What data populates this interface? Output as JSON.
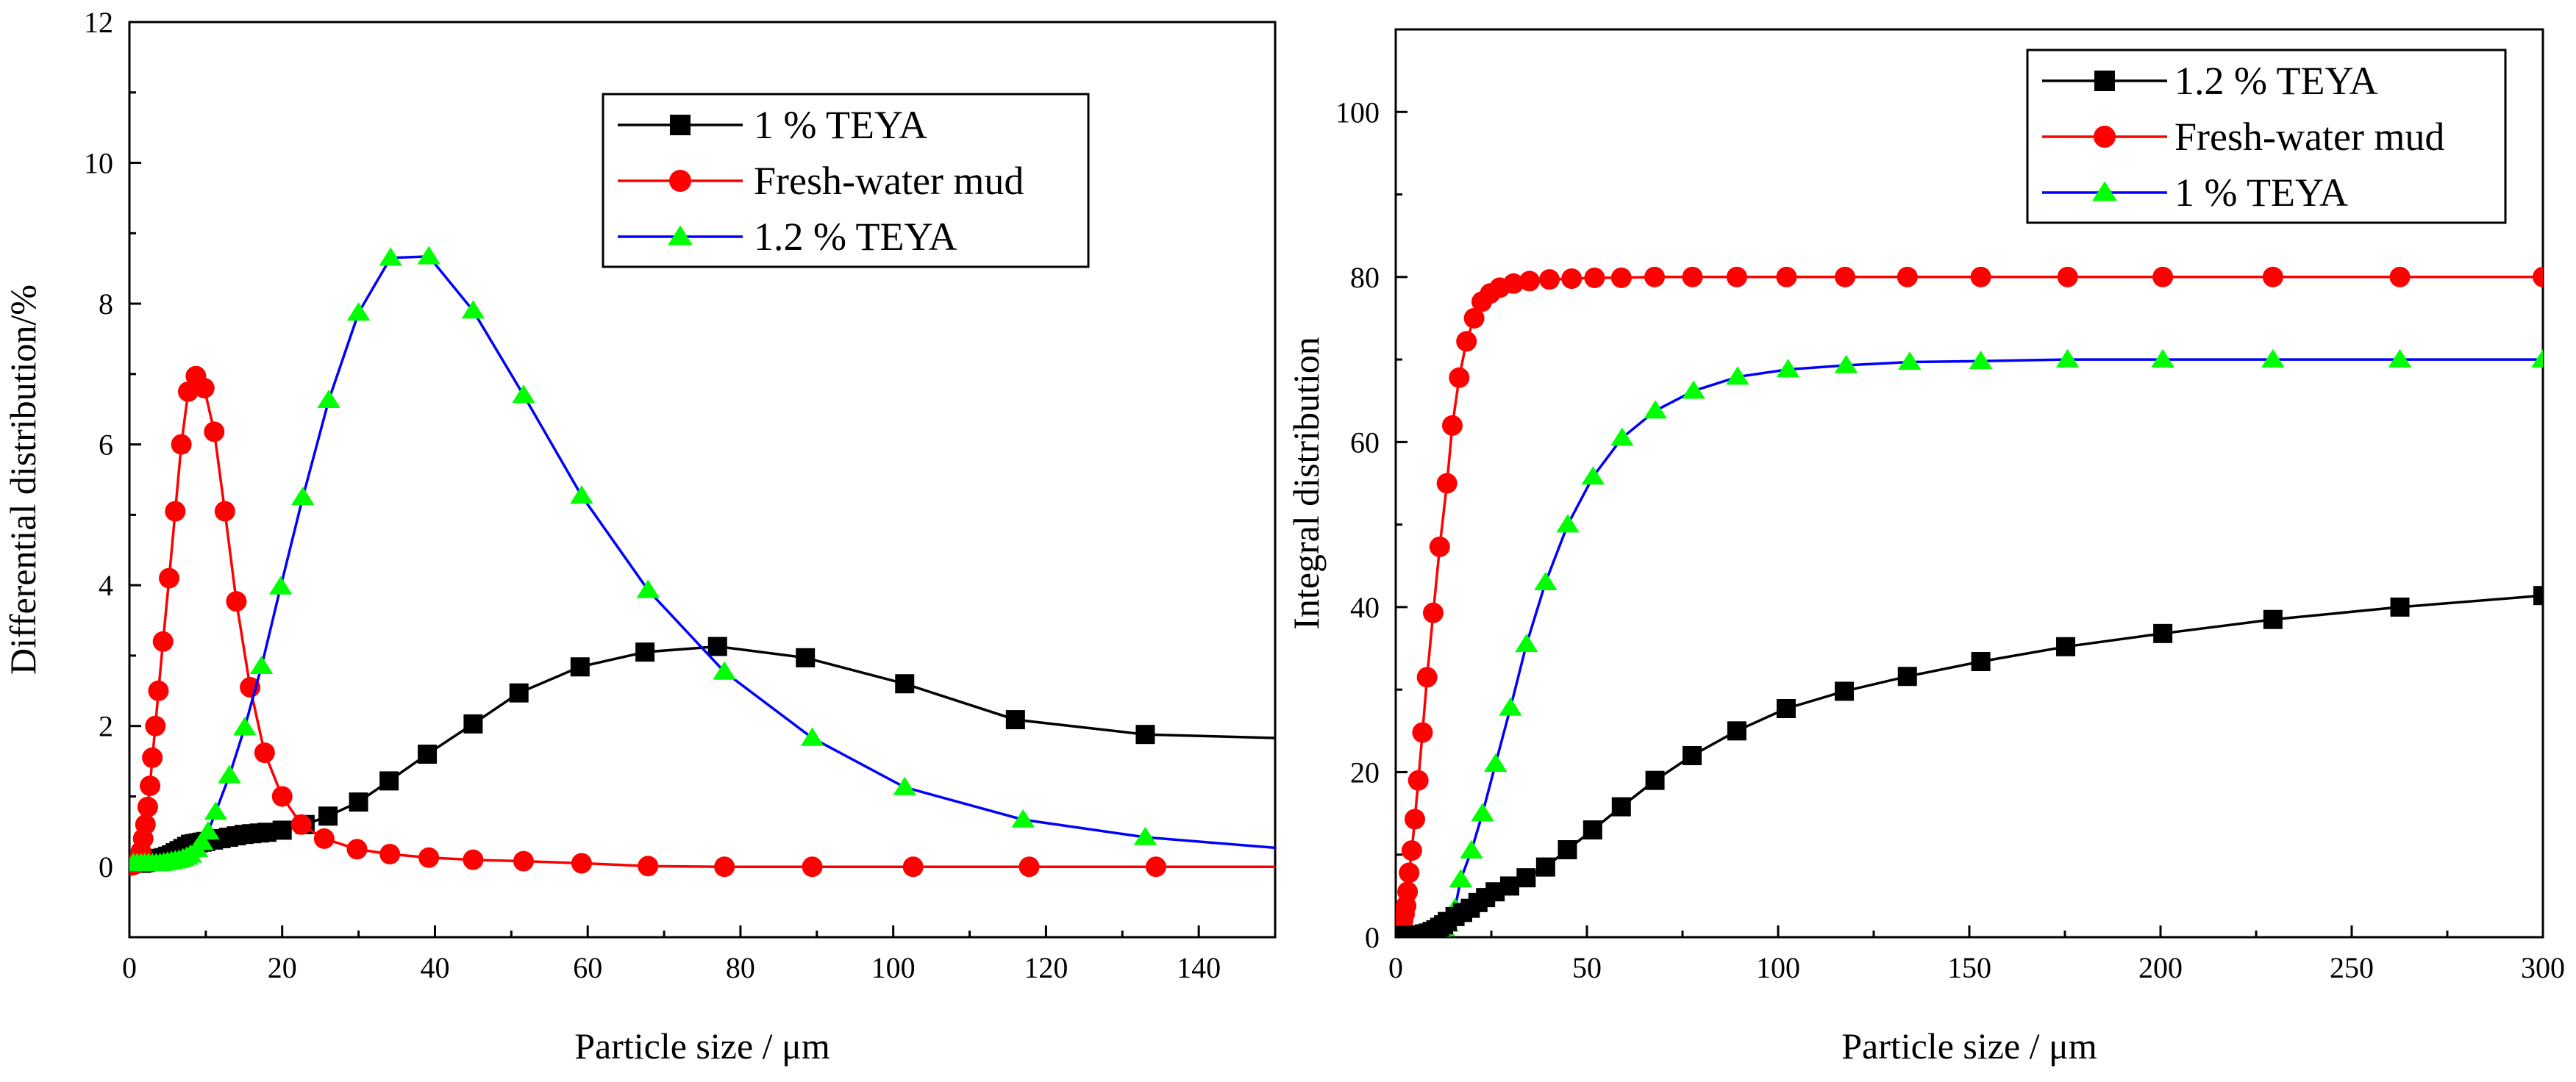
{
  "chart_data": [
    {
      "type": "line",
      "xlabel": "Particle size / μm",
      "ylabel": "Differential distribution/%",
      "xlim": [
        0,
        150
      ],
      "ylim": [
        -1,
        12
      ],
      "xticks": [
        0,
        20,
        40,
        60,
        80,
        100,
        120,
        140
      ],
      "yticks": [
        0,
        2,
        4,
        6,
        8,
        10,
        12
      ],
      "legend_position": "top-right",
      "legend_order": [
        0,
        1,
        2
      ],
      "series": [
        {
          "name": "1 % TEYA",
          "color": "#000000",
          "marker": "square",
          "x": [
            0.4,
            0.8,
            1.2,
            1.6,
            2.0,
            2.4,
            2.8,
            3.2,
            3.6,
            4.0,
            4.5,
            5.0,
            5.5,
            6.0,
            6.5,
            7.0,
            7.5,
            8.0,
            8.5,
            9.0,
            9.5,
            10.0,
            11.0,
            12.0,
            13.0,
            14.0,
            15.0,
            16.0,
            17.0,
            18.0,
            20.0,
            23.0,
            26.0,
            30.0,
            34.0,
            39.0,
            45.0,
            51.0,
            59.0,
            67.5,
            77.0,
            88.5,
            101.5,
            116.0,
            133.0,
            150.0
          ],
          "y": [
            0.05,
            0.05,
            0.05,
            0.05,
            0.06,
            0.07,
            0.08,
            0.09,
            0.1,
            0.12,
            0.13,
            0.15,
            0.17,
            0.2,
            0.23,
            0.26,
            0.29,
            0.32,
            0.33,
            0.34,
            0.35,
            0.36,
            0.38,
            0.4,
            0.42,
            0.44,
            0.46,
            0.47,
            0.48,
            0.49,
            0.52,
            0.6,
            0.72,
            0.92,
            1.22,
            1.6,
            2.03,
            2.47,
            2.84,
            3.05,
            3.13,
            2.97,
            2.6,
            2.09,
            1.88,
            1.83
          ],
          "markers_until": 133.0
        },
        {
          "name": "Fresh-water mud",
          "color": "#ff0000",
          "marker": "circle",
          "x": [
            0.3,
            0.6,
            0.9,
            1.2,
            1.5,
            1.8,
            2.1,
            2.4,
            2.7,
            3.0,
            3.4,
            3.8,
            4.4,
            5.2,
            6.0,
            6.8,
            7.7,
            8.7,
            9.8,
            11.1,
            12.5,
            14.0,
            15.8,
            17.7,
            20.0,
            22.5,
            25.5,
            29.8,
            34.1,
            39.2,
            45.0,
            51.6,
            59.2,
            67.9,
            77.9,
            89.4,
            102.6,
            117.8,
            134.4,
            150.0
          ],
          "y": [
            0.02,
            0.03,
            0.05,
            0.1,
            0.22,
            0.4,
            0.6,
            0.85,
            1.15,
            1.55,
            2.0,
            2.5,
            3.2,
            4.1,
            5.05,
            6.0,
            6.75,
            6.97,
            6.8,
            6.18,
            5.05,
            3.77,
            2.55,
            1.62,
            1.0,
            0.6,
            0.4,
            0.25,
            0.18,
            0.13,
            0.1,
            0.08,
            0.05,
            0.01,
            0.0,
            0.0,
            0.0,
            0.0,
            0.0,
            0.0
          ],
          "markers_until": 134.4
        },
        {
          "name": "1.2 % TEYA",
          "color": "#0000ff",
          "marker": "triangle",
          "marker_fill": "#00ff00",
          "x": [
            0.5,
            1.0,
            1.5,
            2.0,
            2.5,
            3.0,
            3.5,
            4.0,
            4.5,
            5.0,
            5.5,
            6.0,
            6.5,
            7.0,
            7.5,
            8.0,
            8.8,
            9.5,
            10.3,
            11.3,
            13.1,
            15.1,
            17.3,
            19.8,
            22.7,
            26.1,
            30.0,
            34.2,
            39.2,
            45.0,
            51.6,
            59.2,
            67.9,
            77.9,
            89.4,
            101.5,
            117.0,
            133.0,
            150.0
          ],
          "y": [
            0.05,
            0.05,
            0.05,
            0.05,
            0.05,
            0.05,
            0.05,
            0.05,
            0.06,
            0.07,
            0.08,
            0.09,
            0.1,
            0.12,
            0.14,
            0.17,
            0.25,
            0.35,
            0.5,
            0.78,
            1.3,
            1.98,
            2.85,
            3.98,
            5.25,
            6.63,
            7.87,
            8.65,
            8.67,
            7.9,
            6.7,
            5.27,
            3.93,
            2.77,
            1.83,
            1.13,
            0.67,
            0.42,
            0.27
          ],
          "markers_until": 133.0
        }
      ]
    },
    {
      "type": "line",
      "xlabel": "Particle size / μm",
      "ylabel": "Integral distribution",
      "xlim": [
        0,
        300
      ],
      "ylim": [
        0,
        110
      ],
      "xticks": [
        0,
        50,
        100,
        150,
        200,
        250,
        300
      ],
      "yticks": [
        0,
        20,
        40,
        60,
        80,
        100
      ],
      "legend_position": "top-right",
      "legend_order": [
        2,
        1,
        0
      ],
      "series": [
        {
          "name": "1 % TEYA",
          "color": "#0000ff",
          "marker": "triangle",
          "marker_fill": "#00ff00",
          "x": [
            0.5,
            1.5,
            2.5,
            3.5,
            4.5,
            5.5,
            6.5,
            7.5,
            8.5,
            9.5,
            10.5,
            11.5,
            12.5,
            13.5,
            14.5,
            15.5,
            17.0,
            19.8,
            22.7,
            26.1,
            30.0,
            34.2,
            39.2,
            45.0,
            51.6,
            59.2,
            67.9,
            77.9,
            89.4,
            102.6,
            117.8,
            134.4,
            153.0,
            175.7,
            200.6,
            229.4,
            262.6,
            300.0
          ],
          "y": [
            0.2,
            0.2,
            0.2,
            0.2,
            0.2,
            0.2,
            0.3,
            0.3,
            0.4,
            0.5,
            0.6,
            0.8,
            1.1,
            1.6,
            2.4,
            3.5,
            7.0,
            10.5,
            15.0,
            21.0,
            27.8,
            35.5,
            43.0,
            50.0,
            55.8,
            60.5,
            63.8,
            66.2,
            67.9,
            68.8,
            69.3,
            69.7,
            69.8,
            70.0,
            70.0,
            70.0,
            70.0,
            70.0
          ],
          "markers_until": 300.0
        },
        {
          "name": "Fresh-water mud",
          "color": "#ff0000",
          "marker": "circle",
          "x": [
            0.3,
            0.7,
            1.1,
            1.5,
            1.9,
            2.3,
            2.7,
            3.1,
            3.5,
            4.2,
            5.0,
            5.9,
            7.0,
            8.2,
            9.8,
            11.5,
            13.4,
            14.8,
            16.6,
            18.5,
            20.5,
            22.5,
            24.7,
            27.2,
            30.8,
            35.0,
            40.2,
            46.0,
            52.0,
            59.0,
            67.7,
            77.6,
            89.2,
            102.2,
            117.5,
            133.8,
            153.0,
            175.7,
            200.6,
            229.4,
            262.6,
            300.0
          ],
          "y": [
            0.1,
            0.3,
            0.7,
            1.3,
            2.0,
            2.8,
            3.8,
            5.5,
            7.8,
            10.5,
            14.3,
            19.0,
            24.8,
            31.5,
            39.3,
            47.3,
            55.0,
            62.0,
            67.8,
            72.2,
            75.0,
            77.0,
            78.0,
            78.7,
            79.2,
            79.5,
            79.7,
            79.8,
            79.9,
            79.9,
            80.0,
            80.0,
            80.0,
            80.0,
            80.0,
            80.0,
            80.0,
            80.0,
            80.0,
            80.0,
            80.0,
            80.0
          ],
          "markers_until": 300.0
        },
        {
          "name": "1.2 % TEYA",
          "color": "#000000",
          "marker": "square",
          "x": [
            0.5,
            1.5,
            2.5,
            3.5,
            4.5,
            5.5,
            6.5,
            7.5,
            8.5,
            9.5,
            10.5,
            11.5,
            12.5,
            13.5,
            15.5,
            17.5,
            19.5,
            21.5,
            23.5,
            26.0,
            29.8,
            34.1,
            39.2,
            44.9,
            51.5,
            59.0,
            67.8,
            77.5,
            89.2,
            102.1,
            117.3,
            133.8,
            153.0,
            175.2,
            200.6,
            229.4,
            262.6,
            300.0
          ],
          "y": [
            0.2,
            0.2,
            0.2,
            0.2,
            0.2,
            0.2,
            0.3,
            0.4,
            0.5,
            0.7,
            0.9,
            1.2,
            1.5,
            1.9,
            2.5,
            3.0,
            3.5,
            4.2,
            4.8,
            5.5,
            6.2,
            7.2,
            8.5,
            10.6,
            13.0,
            15.8,
            19.0,
            22.0,
            25.0,
            27.7,
            29.8,
            31.6,
            33.4,
            35.2,
            36.8,
            38.5,
            40.0,
            41.4
          ],
          "markers_until": 300.0
        }
      ]
    }
  ]
}
